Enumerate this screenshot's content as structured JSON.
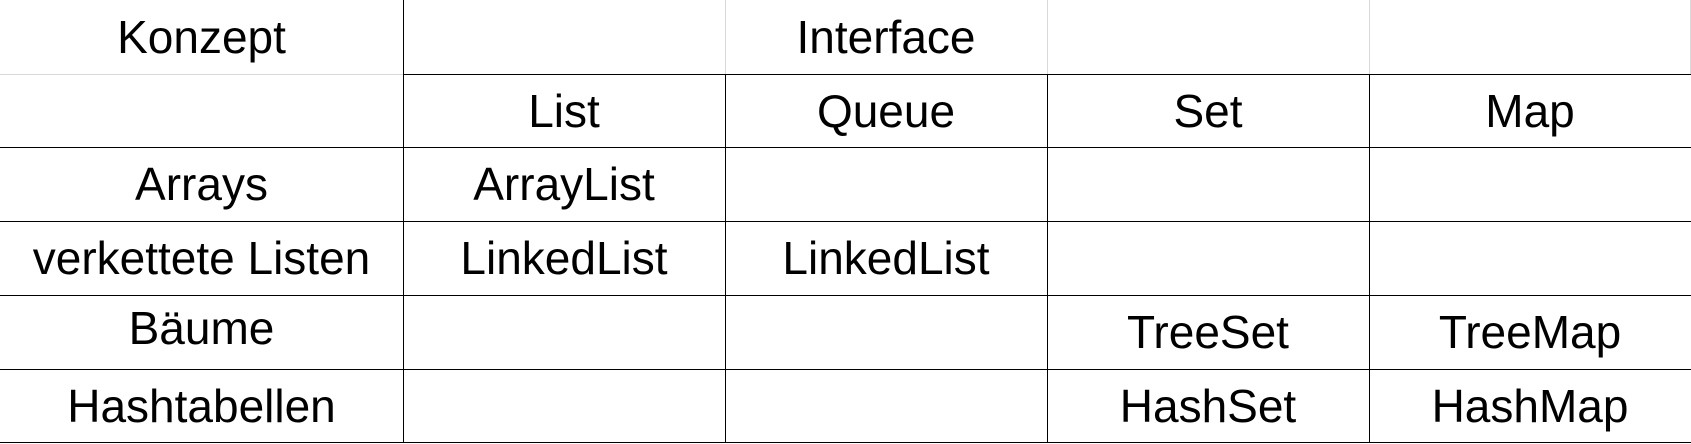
{
  "table": {
    "header": {
      "concept_label": "Konzept",
      "interface_label": "Interface",
      "columns": [
        "List",
        "Queue",
        "Set",
        "Map"
      ]
    },
    "rows": [
      {
        "concept": "Arrays",
        "list": "ArrayList",
        "queue": "",
        "set": "",
        "map": ""
      },
      {
        "concept": "verkettete Listen",
        "list": "LinkedList",
        "queue": "LinkedList",
        "set": "",
        "map": ""
      },
      {
        "concept": "Bäume",
        "list": "",
        "queue": "",
        "set": "TreeSet",
        "map": "TreeMap"
      },
      {
        "concept": "Hashtabellen",
        "list": "",
        "queue": "",
        "set": "HashSet",
        "map": "HashMap"
      }
    ]
  },
  "colors": {
    "text": "#000000",
    "border": "#000000",
    "background": "#ffffff"
  }
}
